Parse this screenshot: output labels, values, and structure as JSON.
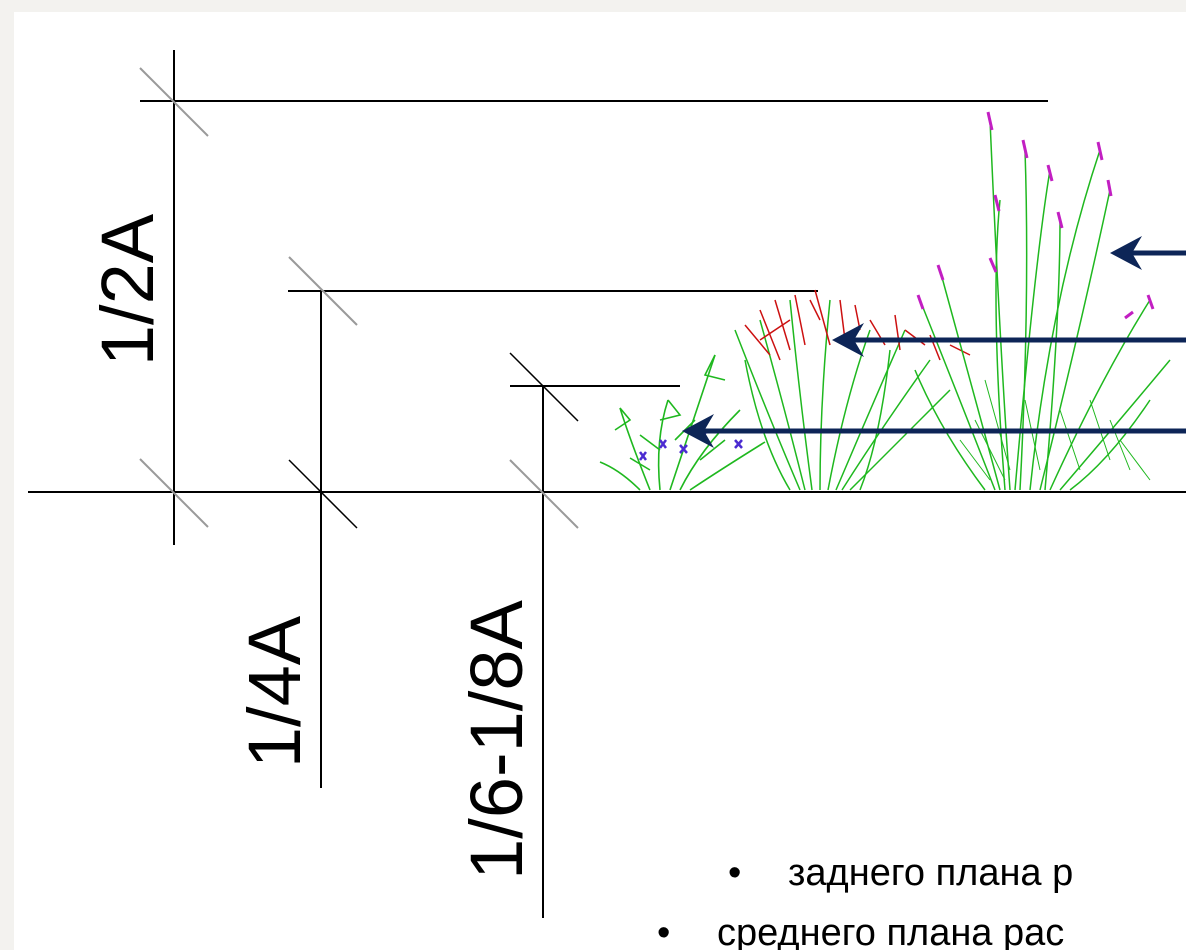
{
  "dimension_labels": {
    "half": "1/2A",
    "quarter": "1/4A",
    "sixth_eighth": "1/6-1/8A"
  },
  "bullets": [
    {
      "marker": "•",
      "text": "заднего плана р"
    },
    {
      "marker": "•",
      "text": "среднего плана рас"
    }
  ],
  "colors": {
    "line": "#000000",
    "tick": "#9a9a9a",
    "arrow": "#0d2557",
    "grass": "#1fb81f",
    "red_plant": "#cc1111",
    "pink_flower": "#c21fc2",
    "blue_flower": "#4b2bd1"
  },
  "icons": {
    "tall-plant": "tall-grass-with-pink-flowers-icon",
    "mid-plant": "red-green-grass-icon",
    "small-plant": "small-plant-with-blue-flowers-icon"
  }
}
